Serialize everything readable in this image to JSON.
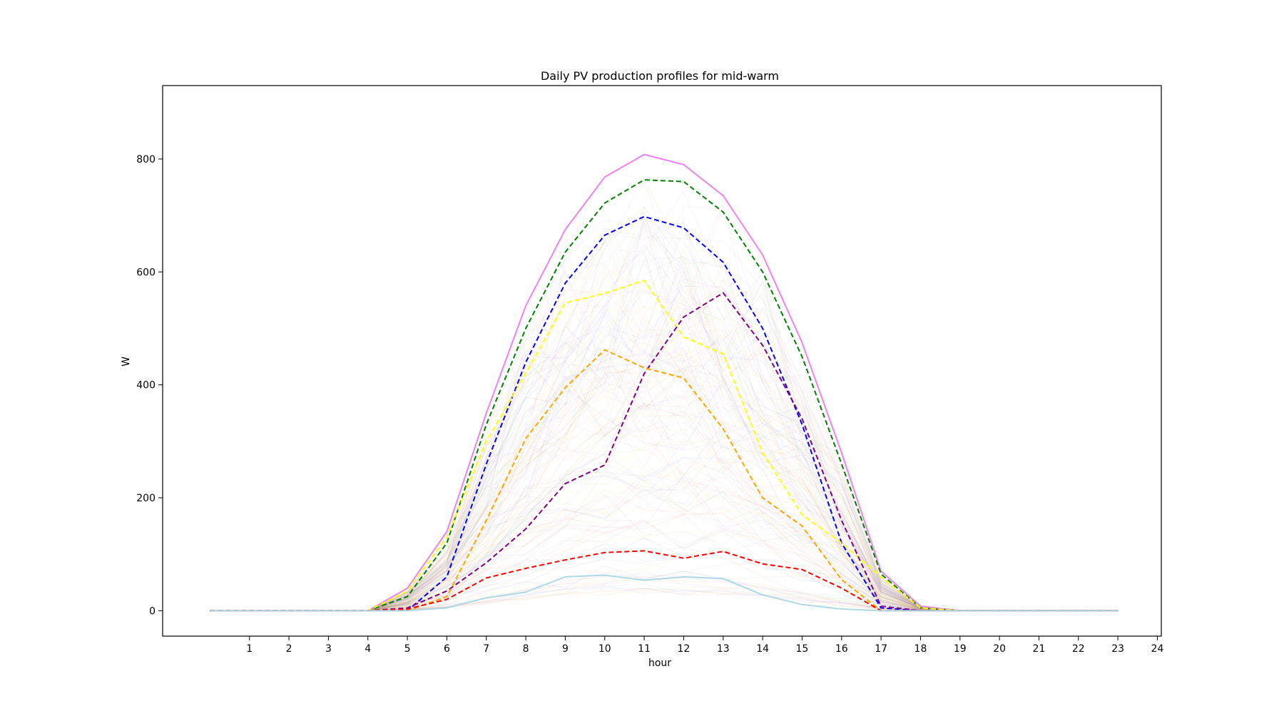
{
  "chart_data": {
    "type": "line",
    "title": "Daily PV production profiles for mid-warm",
    "xlabel": "hour",
    "ylabel": "W",
    "xlim": [
      -1.2,
      24.1
    ],
    "ylim": [
      -45,
      930
    ],
    "xticks": [
      1,
      2,
      3,
      4,
      5,
      6,
      7,
      8,
      9,
      10,
      11,
      12,
      13,
      14,
      15,
      16,
      17,
      18,
      19,
      20,
      21,
      22,
      23,
      24
    ],
    "yticks": [
      0,
      200,
      400,
      600,
      800
    ],
    "grid": false,
    "legend": "none",
    "x": [
      0,
      1,
      2,
      3,
      4,
      5,
      6,
      7,
      8,
      9,
      10,
      11,
      12,
      13,
      14,
      15,
      16,
      17,
      18,
      19,
      20,
      21,
      22,
      23
    ],
    "series": [
      {
        "color": "#ee82ee",
        "style": "solid",
        "values": [
          0,
          0,
          0,
          0,
          0,
          40,
          140,
          350,
          540,
          675,
          768,
          808,
          790,
          735,
          630,
          475,
          280,
          70,
          8,
          0,
          0,
          0,
          0,
          0
        ]
      },
      {
        "color": "#008000",
        "style": "dashed",
        "values": [
          0,
          0,
          0,
          0,
          0,
          25,
          120,
          330,
          500,
          635,
          722,
          763,
          760,
          706,
          600,
          450,
          260,
          65,
          5,
          0,
          0,
          0,
          0,
          0
        ]
      },
      {
        "color": "#0000ff",
        "style": "dashed",
        "values": [
          0,
          0,
          0,
          0,
          0,
          0,
          60,
          260,
          440,
          580,
          665,
          698,
          678,
          617,
          500,
          330,
          120,
          5,
          0,
          0,
          0,
          0,
          0,
          0
        ]
      },
      {
        "color": "#ffff00",
        "style": "dashed",
        "values": [
          0,
          0,
          0,
          0,
          0,
          35,
          130,
          300,
          420,
          545,
          562,
          585,
          485,
          455,
          280,
          170,
          120,
          60,
          5,
          0,
          0,
          0,
          0,
          0
        ]
      },
      {
        "color": "#800080",
        "style": "dashed",
        "values": [
          0,
          0,
          0,
          0,
          0,
          5,
          35,
          85,
          145,
          225,
          258,
          420,
          520,
          563,
          470,
          340,
          160,
          8,
          0,
          0,
          0,
          0,
          0,
          0
        ]
      },
      {
        "color": "#ffa500",
        "style": "dashed",
        "values": [
          0,
          0,
          0,
          0,
          0,
          0,
          25,
          160,
          305,
          395,
          462,
          430,
          412,
          322,
          200,
          150,
          55,
          0,
          0,
          0,
          0,
          0,
          0,
          0
        ]
      },
      {
        "color": "#ff0000",
        "style": "dashed",
        "values": [
          0,
          0,
          0,
          0,
          0,
          3,
          20,
          58,
          75,
          90,
          103,
          106,
          93,
          105,
          83,
          73,
          40,
          0,
          0,
          0,
          0,
          0,
          0,
          0
        ]
      },
      {
        "color": "#add8e6",
        "style": "solid",
        "values": [
          0,
          0,
          0,
          0,
          0,
          0,
          5,
          23,
          33,
          60,
          63,
          54,
          60,
          57,
          28,
          11,
          3,
          0,
          0,
          0,
          0,
          0,
          0,
          0
        ]
      }
    ]
  }
}
